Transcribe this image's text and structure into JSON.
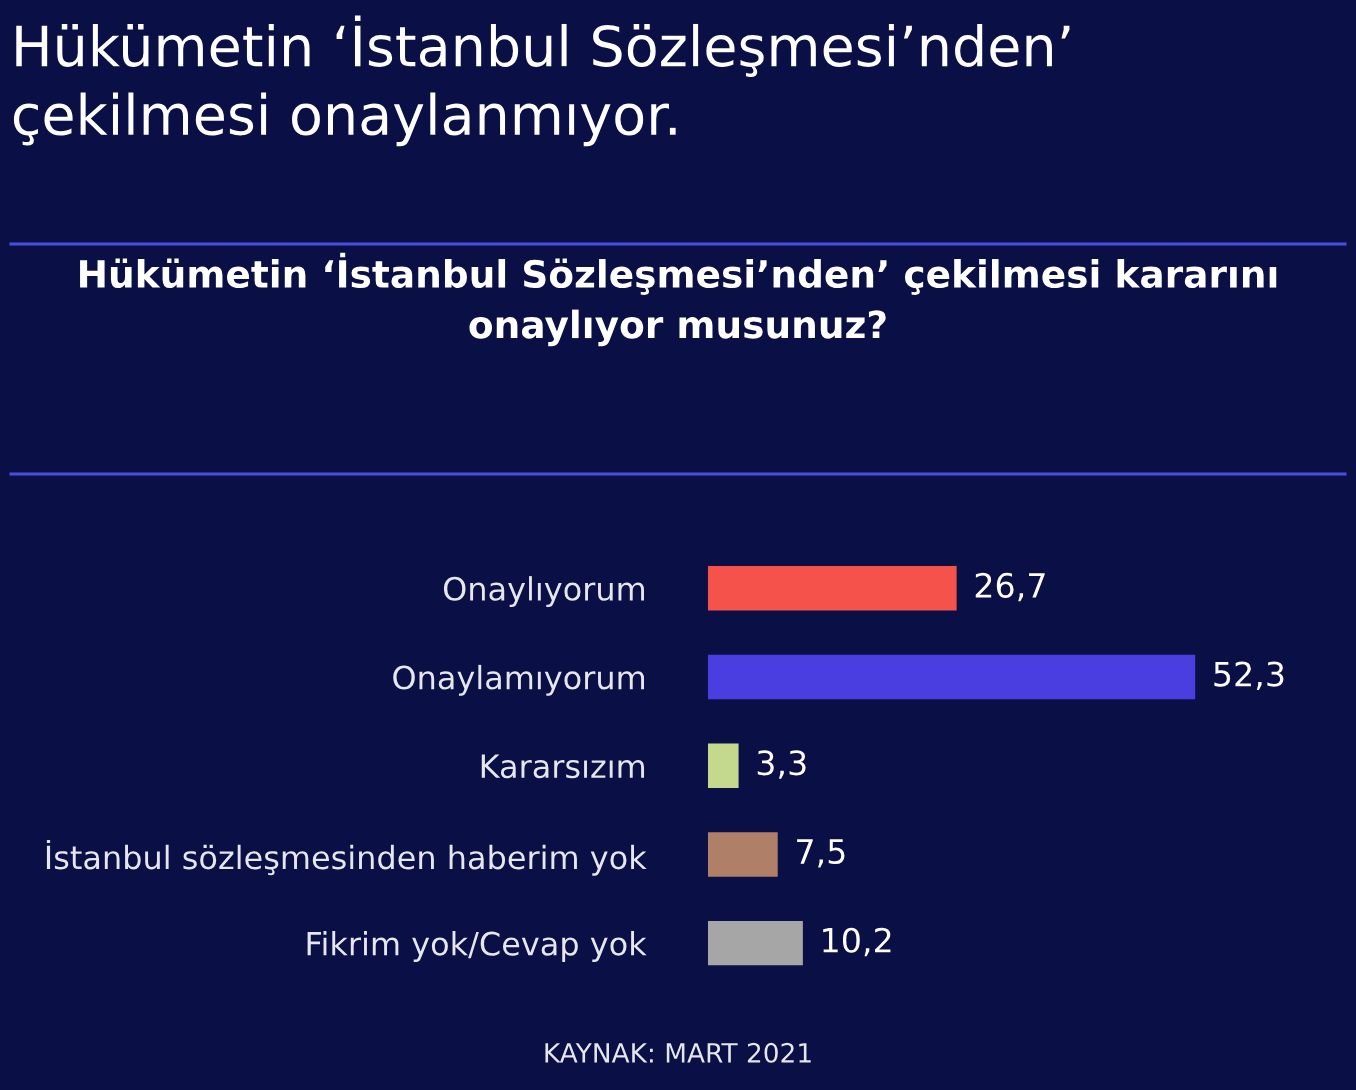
{
  "chart_data": {
    "type": "bar",
    "orientation": "horizontal",
    "title": "Hükümetin ‘İstanbul Sözleşmesi’nden’\nçekilmesi onaylanmıyor.",
    "subtitle": "Hükümetin ‘İstanbul Sözleşmesi’nden’ çekilmesi kararını\nonaylıyor musunuz?",
    "categories": [
      "Onaylıyorum",
      "Onaylamıyorum",
      "Kararsızım",
      "İstanbul sözleşmesinden haberim yok",
      "Fikrim yok/Cevap yok"
    ],
    "values": [
      26.7,
      52.3,
      3.3,
      7.5,
      10.2
    ],
    "colors": [
      "#f4524a",
      "#4a3ee0",
      "#c5d98e",
      "#b07f68",
      "#a6a6a6"
    ],
    "value_labels": [
      "26,7",
      "52,3",
      "3,3",
      "7,5",
      "10,2"
    ],
    "annotations": [
      "KAYNAK: MART 2021"
    ],
    "grid": false,
    "legend": false
  }
}
